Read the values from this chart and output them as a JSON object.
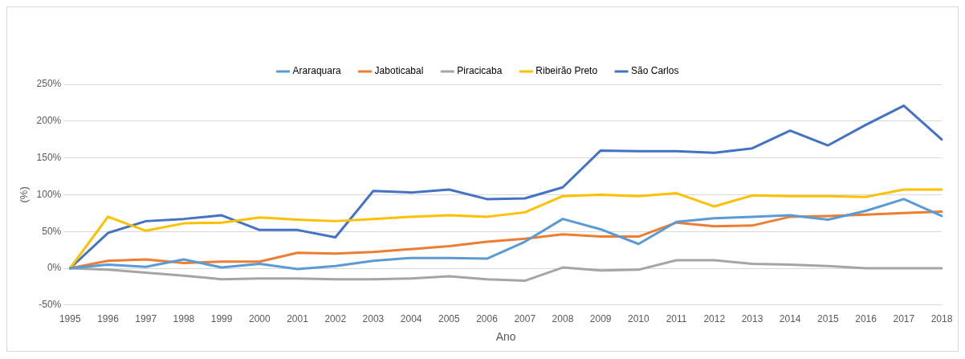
{
  "chart_data": {
    "type": "line",
    "xlabel": "Ano",
    "ylabel": "(%)",
    "categories": [
      "1995",
      "1996",
      "1997",
      "1998",
      "1999",
      "2000",
      "2001",
      "2002",
      "2003",
      "2004",
      "2005",
      "2006",
      "2007",
      "2008",
      "2009",
      "2010",
      "2011",
      "2012",
      "2013",
      "2014",
      "2015",
      "2016",
      "2017",
      "2018"
    ],
    "series": [
      {
        "name": "Araraquara",
        "color": "#5b9bd5",
        "values": [
          0,
          5,
          2,
          12,
          1,
          6,
          -1,
          3,
          10,
          14,
          14,
          13,
          36,
          67,
          53,
          33,
          63,
          68,
          70,
          72,
          66,
          78,
          94,
          71
        ]
      },
      {
        "name": "Jaboticabal",
        "color": "#ed7d31",
        "values": [
          0,
          10,
          12,
          7,
          9,
          9,
          21,
          20,
          22,
          26,
          30,
          36,
          40,
          46,
          43,
          43,
          62,
          57,
          58,
          70,
          71,
          73,
          75,
          77
        ]
      },
      {
        "name": "Piracicaba",
        "color": "#a5a5a5",
        "values": [
          0,
          -2,
          -6,
          -10,
          -15,
          -14,
          -14,
          -15,
          -15,
          -14,
          -11,
          -15,
          -17,
          1,
          -3,
          -2,
          11,
          11,
          6,
          5,
          3,
          0,
          0,
          0
        ]
      },
      {
        "name": "Ribeirão Preto",
        "color": "#ffc000",
        "values": [
          0,
          70,
          51,
          61,
          62,
          69,
          66,
          64,
          67,
          70,
          72,
          70,
          76,
          98,
          100,
          98,
          102,
          84,
          99,
          98,
          98,
          97,
          107,
          107
        ]
      },
      {
        "name": "São Carlos",
        "color": "#4472c4",
        "values": [
          0,
          48,
          64,
          67,
          72,
          52,
          52,
          42,
          105,
          103,
          107,
          94,
          95,
          110,
          160,
          159,
          159,
          157,
          163,
          187,
          167,
          195,
          221,
          175
        ]
      }
    ],
    "ylim": [
      -50,
      250
    ],
    "yticks": [
      {
        "value": -50,
        "label": "-50%"
      },
      {
        "value": 0,
        "label": "0%"
      },
      {
        "value": 50,
        "label": "50%"
      },
      {
        "value": 100,
        "label": "100%"
      },
      {
        "value": 150,
        "label": "150%"
      },
      {
        "value": 200,
        "label": "200%"
      },
      {
        "value": 250,
        "label": "250%"
      }
    ],
    "grid": "y",
    "legend": "top",
    "marker": "none",
    "line_style": "solid"
  }
}
